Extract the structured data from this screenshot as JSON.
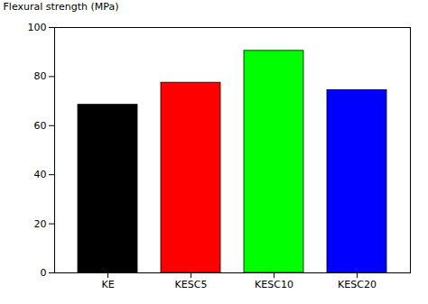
{
  "chart_data": {
    "type": "bar",
    "categories": [
      "KE",
      "KESC5",
      "KESC10",
      "KESC20"
    ],
    "values": [
      68.5,
      77.5,
      90.5,
      74.5
    ],
    "colors": [
      "#000000",
      "#ff0000",
      "#00ff00",
      "#0000ff"
    ],
    "ylabel": "Flexural strength (MPa)",
    "ylim": [
      0,
      100
    ],
    "yticks": [
      0,
      20,
      40,
      60,
      80,
      100
    ]
  }
}
